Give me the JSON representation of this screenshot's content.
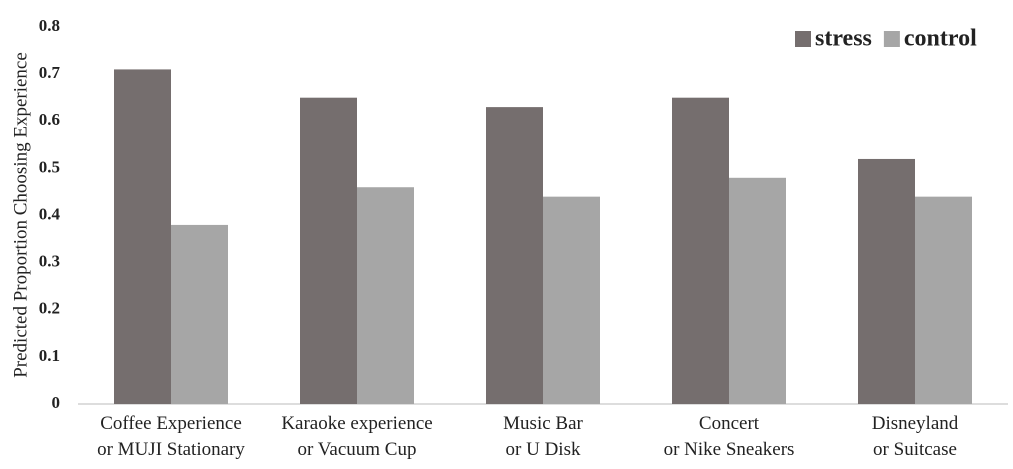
{
  "chart_data": {
    "type": "bar",
    "y_label": "Predicted Proportion Choosing Experience",
    "categories": [
      "Coffee Experience\nor MUJI Stationary",
      "Karaoke experience\nor Vacuum Cup",
      "Music Bar\nor U Disk",
      "Concert\nor Nike Sneakers",
      "Disneyland\nor Suitcase"
    ],
    "series": [
      {
        "name": "stress",
        "color": "#756e6e",
        "values": [
          0.71,
          0.65,
          0.63,
          0.65,
          0.52
        ]
      },
      {
        "name": "control",
        "color": "#a6a6a6",
        "values": [
          0.38,
          0.46,
          0.44,
          0.48,
          0.44
        ]
      }
    ],
    "ylim": [
      0,
      0.8
    ],
    "yticks": [
      0,
      0.1,
      0.2,
      0.3,
      0.4,
      0.5,
      0.6,
      0.7,
      0.8
    ],
    "grid": false,
    "legend": "top-right"
  }
}
